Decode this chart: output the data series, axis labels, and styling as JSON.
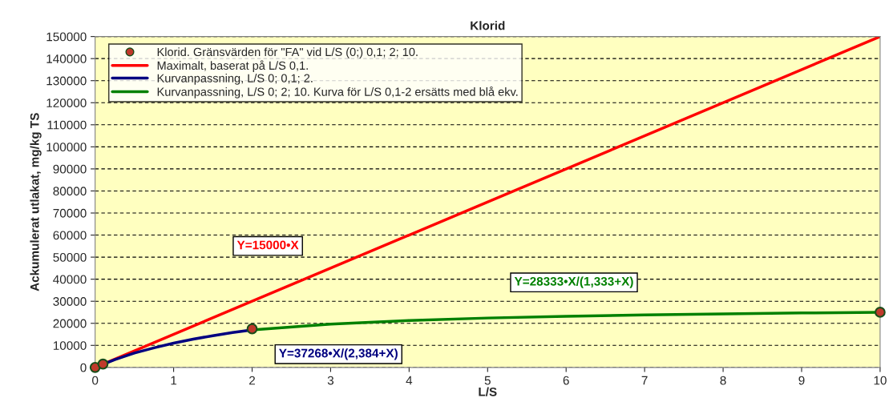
{
  "chart_data": {
    "type": "line",
    "title": "Klorid",
    "xlabel": "L/S",
    "ylabel": "Ackumulerat utlakat, mg/kg TS",
    "series": [
      {
        "name": "Klorid. Gränsvärden för \"FA\" vid L/S (0;) 0,1; 2; 10.",
        "type": "scatter",
        "marker": "circle",
        "color": "#c0392b",
        "x": [
          0,
          0.1,
          2,
          10
        ],
        "values": [
          0,
          1500,
          17500,
          25000
        ]
      },
      {
        "name": "Maximalt, baserat på L/S 0,1.",
        "color": "#ff0000",
        "x": [
          0,
          10
        ],
        "values": [
          0,
          150000
        ]
      },
      {
        "name": "Kurvanpassning, L/S 0; 0,1; 2.",
        "color": "#000080",
        "x": [
          0,
          0.25,
          0.5,
          0.75,
          1,
          1.25,
          1.5,
          1.75,
          2
        ],
        "values": [
          0,
          3500,
          6500,
          8900,
          11000,
          12800,
          14400,
          15800,
          17000
        ]
      },
      {
        "name": "Kurvanpassning, L/S 0; 2; 10. Kurva för L/S 0,1-2 ersätts med blå ekv.",
        "color": "#008000",
        "x": [
          2,
          3,
          4,
          5,
          6,
          7,
          8,
          9,
          10
        ],
        "values": [
          17000,
          19600,
          21300,
          22400,
          23200,
          23800,
          24300,
          24700,
          25000
        ]
      }
    ],
    "annotations": [
      "Y=15000•X",
      "Y=37268•X/(2,384+X)",
      "Y=28333•X/(1,333+X)"
    ],
    "xlim": [
      0,
      10
    ],
    "xticks": [
      0,
      1,
      2,
      3,
      4,
      5,
      6,
      7,
      8,
      9,
      10
    ],
    "ylim": [
      0,
      150000
    ],
    "yticks": [
      0,
      10000,
      20000,
      30000,
      40000,
      50000,
      60000,
      70000,
      80000,
      90000,
      100000,
      110000,
      120000,
      130000,
      140000,
      150000
    ],
    "grid": "y",
    "legend": "top left"
  }
}
